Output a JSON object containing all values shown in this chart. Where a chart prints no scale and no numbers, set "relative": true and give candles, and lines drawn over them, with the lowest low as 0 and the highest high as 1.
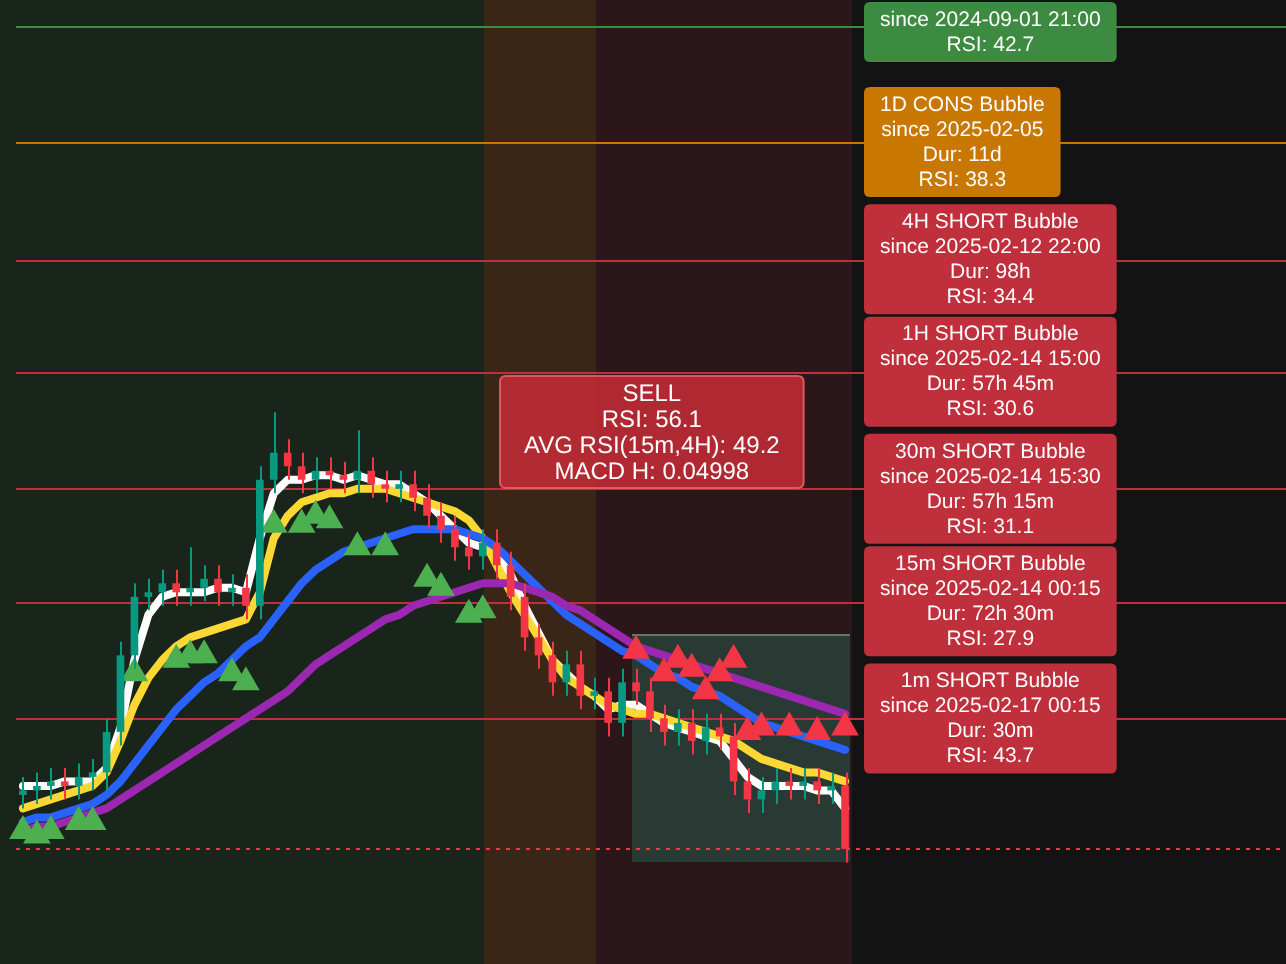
{
  "chart_data": {
    "type": "candlestick",
    "relative": true,
    "legend": false,
    "marker": "triangle",
    "categories": [
      null,
      null,
      null,
      null,
      null,
      null,
      null,
      null,
      null,
      null,
      null,
      null,
      null,
      null,
      null,
      null,
      null,
      null,
      null,
      null,
      null,
      null,
      null,
      null,
      null,
      null,
      null,
      null,
      null,
      null,
      null,
      null,
      null,
      null,
      null,
      null,
      null,
      null,
      null,
      null,
      null,
      null,
      null,
      null,
      null,
      null,
      null,
      null,
      null,
      null,
      null,
      null,
      null,
      null,
      null,
      null,
      null,
      null,
      null,
      null
    ],
    "ohlc": [
      [
        0.15,
        0.19,
        0.12,
        0.16
      ],
      [
        0.16,
        0.2,
        0.13,
        0.17
      ],
      [
        0.17,
        0.21,
        0.14,
        0.18
      ],
      [
        0.18,
        0.21,
        0.14,
        0.17
      ],
      [
        0.17,
        0.22,
        0.14,
        0.19
      ],
      [
        0.19,
        0.23,
        0.16,
        0.2
      ],
      [
        0.2,
        0.32,
        0.16,
        0.29
      ],
      [
        0.29,
        0.49,
        0.26,
        0.46
      ],
      [
        0.46,
        0.62,
        0.43,
        0.59
      ],
      [
        0.59,
        0.63,
        0.56,
        0.6
      ],
      [
        0.6,
        0.65,
        0.57,
        0.62
      ],
      [
        0.62,
        0.65,
        0.57,
        0.6
      ],
      [
        0.6,
        0.7,
        0.57,
        0.61
      ],
      [
        0.61,
        0.66,
        0.58,
        0.63
      ],
      [
        0.63,
        0.66,
        0.57,
        0.6
      ],
      [
        0.6,
        0.64,
        0.57,
        0.61
      ],
      [
        0.61,
        0.64,
        0.54,
        0.57
      ],
      [
        0.57,
        0.88,
        0.54,
        0.85
      ],
      [
        0.85,
        1.0,
        0.82,
        0.91
      ],
      [
        0.91,
        0.94,
        0.85,
        0.88
      ],
      [
        0.88,
        0.91,
        0.82,
        0.85
      ],
      [
        0.85,
        0.9,
        0.82,
        0.87
      ],
      [
        0.87,
        0.9,
        0.83,
        0.86
      ],
      [
        0.86,
        0.89,
        0.82,
        0.85
      ],
      [
        0.85,
        0.96,
        0.82,
        0.87
      ],
      [
        0.87,
        0.9,
        0.81,
        0.84
      ],
      [
        0.84,
        0.87,
        0.8,
        0.83
      ],
      [
        0.83,
        0.87,
        0.8,
        0.84
      ],
      [
        0.84,
        0.87,
        0.78,
        0.81
      ],
      [
        0.81,
        0.84,
        0.74,
        0.77
      ],
      [
        0.77,
        0.8,
        0.71,
        0.74
      ],
      [
        0.74,
        0.77,
        0.67,
        0.7
      ],
      [
        0.7,
        0.73,
        0.65,
        0.68
      ],
      [
        0.68,
        0.74,
        0.65,
        0.71
      ],
      [
        0.71,
        0.74,
        0.63,
        0.66
      ],
      [
        0.66,
        0.69,
        0.56,
        0.59
      ],
      [
        0.59,
        0.62,
        0.47,
        0.5
      ],
      [
        0.5,
        0.53,
        0.43,
        0.46
      ],
      [
        0.46,
        0.49,
        0.37,
        0.4
      ],
      [
        0.4,
        0.47,
        0.37,
        0.44
      ],
      [
        0.44,
        0.47,
        0.34,
        0.37
      ],
      [
        0.37,
        0.41,
        0.34,
        0.38
      ],
      [
        0.38,
        0.41,
        0.28,
        0.31
      ],
      [
        0.31,
        0.43,
        0.28,
        0.4
      ],
      [
        0.4,
        0.43,
        0.35,
        0.38
      ],
      [
        0.38,
        0.41,
        0.29,
        0.32
      ],
      [
        0.32,
        0.35,
        0.26,
        0.29
      ],
      [
        0.29,
        0.34,
        0.26,
        0.31
      ],
      [
        0.31,
        0.34,
        0.24,
        0.27
      ],
      [
        0.27,
        0.33,
        0.24,
        0.3
      ],
      [
        0.3,
        0.33,
        0.25,
        0.28
      ],
      [
        0.28,
        0.31,
        0.15,
        0.18
      ],
      [
        0.18,
        0.21,
        0.11,
        0.14
      ],
      [
        0.14,
        0.19,
        0.11,
        0.16
      ],
      [
        0.16,
        0.21,
        0.13,
        0.18
      ],
      [
        0.18,
        0.21,
        0.14,
        0.17
      ],
      [
        0.17,
        0.21,
        0.14,
        0.18
      ],
      [
        0.18,
        0.21,
        0.13,
        0.16
      ],
      [
        0.16,
        0.2,
        0.13,
        0.17
      ],
      [
        0.17,
        0.2,
        0.0,
        0.03
      ]
    ],
    "series": [
      {
        "type": "line",
        "marker": "none",
        "color": "#9c27b0",
        "values": [
          0.07,
          0.08,
          0.08,
          0.09,
          0.1,
          0.11,
          0.12,
          0.14,
          0.16,
          0.18,
          0.2,
          0.22,
          0.24,
          0.26,
          0.28,
          0.3,
          0.32,
          0.34,
          0.36,
          0.38,
          0.41,
          0.44,
          0.46,
          0.48,
          0.5,
          0.52,
          0.54,
          0.55,
          0.57,
          0.58,
          0.59,
          0.6,
          0.61,
          0.62,
          0.62,
          0.62,
          0.61,
          0.6,
          0.59,
          0.57,
          0.56,
          0.54,
          0.52,
          0.5,
          0.48,
          0.47,
          0.46,
          0.45,
          0.44,
          0.43,
          0.42,
          0.41,
          0.4,
          0.39,
          0.38,
          0.37,
          0.36,
          0.35,
          0.34,
          0.33
        ]
      },
      {
        "type": "line",
        "marker": "none",
        "color": "#2962ff",
        "values": [
          0.09,
          0.1,
          0.1,
          0.11,
          0.12,
          0.13,
          0.15,
          0.18,
          0.22,
          0.26,
          0.3,
          0.34,
          0.37,
          0.4,
          0.42,
          0.45,
          0.48,
          0.5,
          0.54,
          0.58,
          0.62,
          0.65,
          0.67,
          0.69,
          0.7,
          0.71,
          0.72,
          0.73,
          0.74,
          0.74,
          0.74,
          0.74,
          0.73,
          0.72,
          0.7,
          0.67,
          0.64,
          0.61,
          0.58,
          0.55,
          0.53,
          0.51,
          0.49,
          0.47,
          0.46,
          0.44,
          0.42,
          0.41,
          0.39,
          0.38,
          0.37,
          0.35,
          0.33,
          0.31,
          0.3,
          0.29,
          0.28,
          0.27,
          0.26,
          0.25
        ]
      },
      {
        "type": "line",
        "marker": "none",
        "color": "#fdd835",
        "values": [
          0.12,
          0.13,
          0.14,
          0.15,
          0.16,
          0.17,
          0.2,
          0.27,
          0.35,
          0.41,
          0.45,
          0.48,
          0.5,
          0.51,
          0.52,
          0.53,
          0.54,
          0.6,
          0.72,
          0.77,
          0.8,
          0.81,
          0.82,
          0.82,
          0.83,
          0.83,
          0.83,
          0.82,
          0.81,
          0.8,
          0.79,
          0.78,
          0.76,
          0.72,
          0.66,
          0.6,
          0.55,
          0.5,
          0.45,
          0.41,
          0.39,
          0.37,
          0.35,
          0.34,
          0.33,
          0.33,
          0.32,
          0.31,
          0.3,
          0.29,
          0.28,
          0.27,
          0.25,
          0.23,
          0.22,
          0.21,
          0.2,
          0.2,
          0.19,
          0.18
        ]
      },
      {
        "type": "line",
        "marker": "none",
        "color": "#ffffff",
        "values": [
          0.17,
          0.17,
          0.17,
          0.18,
          0.18,
          0.18,
          0.21,
          0.3,
          0.45,
          0.55,
          0.59,
          0.6,
          0.6,
          0.6,
          0.61,
          0.61,
          0.6,
          0.72,
          0.82,
          0.85,
          0.85,
          0.86,
          0.86,
          0.85,
          0.86,
          0.85,
          0.84,
          0.84,
          0.82,
          0.8,
          0.77,
          0.74,
          0.71,
          0.7,
          0.68,
          0.64,
          0.57,
          0.51,
          0.45,
          0.42,
          0.39,
          0.37,
          0.34,
          0.35,
          0.35,
          0.33,
          0.31,
          0.3,
          0.29,
          0.28,
          0.27,
          0.23,
          0.19,
          0.17,
          0.17,
          0.17,
          0.17,
          0.16,
          0.16,
          0.12
        ]
      },
      {
        "type": "scatter",
        "color": "#4caf50",
        "values": [
          0.07,
          0.06,
          0.07,
          null,
          0.09,
          0.09,
          null,
          null,
          0.42,
          null,
          null,
          0.45,
          0.46,
          0.46,
          null,
          0.42,
          0.4,
          null,
          0.75,
          null,
          0.75,
          0.77,
          0.76,
          null,
          0.7,
          null,
          0.7,
          null,
          null,
          0.63,
          0.61,
          null,
          0.55,
          0.56,
          null,
          null,
          null,
          null,
          null,
          null,
          null,
          null,
          null,
          null,
          null,
          null,
          null,
          null,
          null,
          null,
          null,
          null,
          null,
          null,
          null,
          null,
          null,
          null,
          null,
          null
        ]
      },
      {
        "type": "scatter",
        "color": "#f23645",
        "values": [
          null,
          null,
          null,
          null,
          null,
          null,
          null,
          null,
          null,
          null,
          null,
          null,
          null,
          null,
          null,
          null,
          null,
          null,
          null,
          null,
          null,
          null,
          null,
          null,
          null,
          null,
          null,
          null,
          null,
          null,
          null,
          null,
          null,
          null,
          null,
          null,
          null,
          null,
          null,
          null,
          null,
          null,
          null,
          null,
          0.47,
          null,
          0.42,
          0.45,
          0.43,
          0.38,
          0.42,
          0.45,
          0.29,
          0.3,
          null,
          0.3,
          null,
          0.29,
          null,
          0.3
        ]
      }
    ],
    "ref_lines": [
      {
        "axis": "y",
        "value": 1.86,
        "color": "#3d8b40",
        "line_style": "solid"
      },
      {
        "axis": "y",
        "value": 1.6,
        "color": "#c87800",
        "line_style": "solid"
      },
      {
        "axis": "y",
        "value": 1.34,
        "color": "#c0303c",
        "line_style": "solid"
      },
      {
        "axis": "y",
        "value": 1.09,
        "color": "#c0303c",
        "line_style": "solid"
      },
      {
        "axis": "y",
        "value": 0.83,
        "color": "#c0303c",
        "line_style": "solid"
      },
      {
        "axis": "y",
        "value": 0.58,
        "color": "#c0303c",
        "line_style": "solid"
      },
      {
        "axis": "y",
        "value": 0.32,
        "color": "#c0303c",
        "line_style": "solid"
      },
      {
        "axis": "y",
        "value": 0.03,
        "color": "#f23645",
        "line_style": "dotted"
      }
    ],
    "annotations": [
      {
        "text": "since 2024-09-01 21:00\nRSI: 42.7",
        "y": 1.86
      },
      {
        "text": "1D CONS Bubble\nsince 2025-02-05\nDur: 11d\nRSI: 38.3",
        "y": 1.6
      },
      {
        "text": "4H SHORT Bubble\nsince 2025-02-12 22:00\nDur: 98h\nRSI: 34.4",
        "y": 1.34
      },
      {
        "text": "1H SHORT Bubble\nsince 2025-02-14 15:00\nDur: 57h 45m\nRSI: 30.6",
        "y": 1.09
      },
      {
        "text": "30m SHORT Bubble\nsince 2025-02-14 15:30\nDur: 57h 15m\nRSI: 31.1",
        "y": 0.83
      },
      {
        "text": "15m SHORT Bubble\nsince 2025-02-14 00:15\nDur: 72h 30m\nRSI: 27.9",
        "y": 0.58
      },
      {
        "text": "1m SHORT Bubble\nsince 2025-02-17 00:15\nDur: 30m\nRSI: 43.7",
        "y": 0.32
      },
      "SELL\nRSI: 56.1\nAVG RSI(15m,4H): 49.2\nMACD H: 0.04998"
    ]
  }
}
